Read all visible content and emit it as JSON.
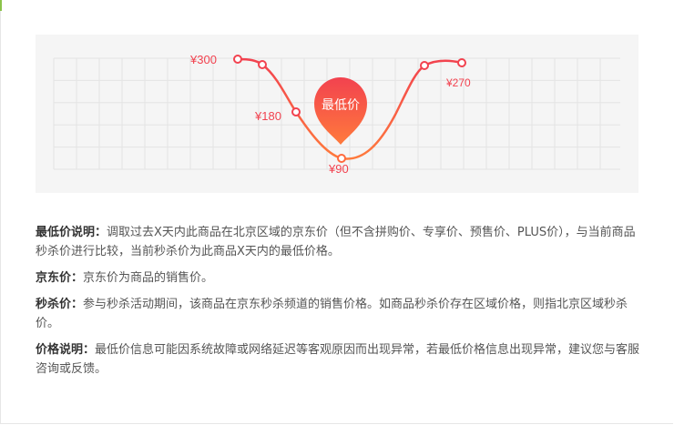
{
  "colors": {
    "accent": "#f2424f",
    "accent_orange": "#ff7a3c",
    "panel_bg": "#f5f5f5",
    "grid": "#e4e4e4",
    "text_strong": "#333333",
    "text": "#555555"
  },
  "price_chart": {
    "badge_text": "最低价",
    "labels": [
      {
        "id": "p300",
        "text": "¥300"
      },
      {
        "id": "p180",
        "text": "¥180"
      },
      {
        "id": "p90",
        "text": "¥90"
      },
      {
        "id": "p270",
        "text": "¥270"
      }
    ]
  },
  "descriptions": [
    {
      "term": "最低价说明：",
      "text": "调取过去X天内此商品在北京区域的京东价（但不含拼购价、专享价、预售价、PLUS价），与当前商品秒杀价进行比较，当前秒杀价为此商品X天内的最低价格。"
    },
    {
      "term": "京东价：",
      "text": "京东价为商品的销售价。"
    },
    {
      "term": "秒杀价：",
      "text": "参与秒杀活动期间，该商品在京东秒杀频道的销售价格。如商品秒杀价存在区域价格，则指北京区域秒杀价。"
    },
    {
      "term": "价格说明：",
      "text": "最低价信息可能因系统故障或网络延迟等客观原因而出现异常，若最低价格信息出现异常，建议您与客服咨询或反馈。"
    }
  ]
}
